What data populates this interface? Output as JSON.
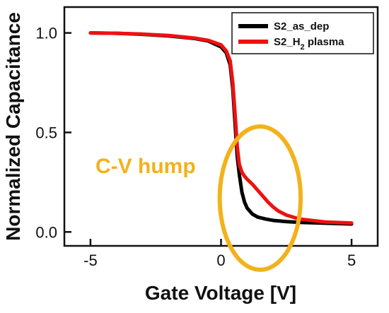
{
  "chart_data": {
    "type": "line",
    "title": "",
    "xlabel": "Gate Voltage [V]",
    "ylabel": "Normalized Capacitance",
    "xlim": [
      -6,
      6
    ],
    "ylim": [
      -0.07,
      1.13
    ],
    "xticks": [
      -5,
      0,
      5
    ],
    "xtick_labels": [
      "-5",
      "0",
      "5"
    ],
    "yticks": [
      0.0,
      0.5,
      1.0
    ],
    "ytick_labels": [
      "0.0",
      "0.5",
      "1.0"
    ],
    "grid": false,
    "legend_position": "top-right",
    "series": [
      {
        "name": "S2_as_dep",
        "color": "#000000",
        "x": [
          -5,
          -4,
          -3,
          -2,
          -1,
          -0.5,
          0,
          0.2,
          0.35,
          0.45,
          0.55,
          0.62,
          0.7,
          0.8,
          0.9,
          1.0,
          1.2,
          1.4,
          1.7,
          2.0,
          2.5,
          3.0,
          4.0,
          5.0
        ],
        "y": [
          1.0,
          0.998,
          0.993,
          0.985,
          0.972,
          0.96,
          0.93,
          0.9,
          0.84,
          0.72,
          0.52,
          0.38,
          0.29,
          0.2,
          0.15,
          0.12,
          0.09,
          0.075,
          0.065,
          0.058,
          0.052,
          0.048,
          0.044,
          0.04
        ]
      },
      {
        "name": "S2_H2 plasma",
        "legend_label_main": "S2_H",
        "legend_label_sub": "2",
        "legend_label_suffix": " plasma",
        "color": "#ee1111",
        "x": [
          -5,
          -4,
          -3,
          -2,
          -1,
          -0.5,
          0,
          0.2,
          0.35,
          0.45,
          0.55,
          0.62,
          0.7,
          0.8,
          0.9,
          1.0,
          1.2,
          1.4,
          1.6,
          1.8,
          2.0,
          2.2,
          2.5,
          3.0,
          4.0,
          5.0
        ],
        "y": [
          1.0,
          0.998,
          0.994,
          0.987,
          0.974,
          0.963,
          0.94,
          0.91,
          0.86,
          0.75,
          0.57,
          0.43,
          0.34,
          0.3,
          0.28,
          0.265,
          0.24,
          0.21,
          0.18,
          0.15,
          0.125,
          0.105,
          0.085,
          0.065,
          0.05,
          0.045
        ]
      }
    ],
    "annotation": {
      "text": "C-V hump",
      "color": "#f2b21b",
      "circle_center_x": 1.5,
      "circle_center_y": 0.17,
      "circle_radius_x": 1.55,
      "circle_radius_y": 0.36
    }
  }
}
